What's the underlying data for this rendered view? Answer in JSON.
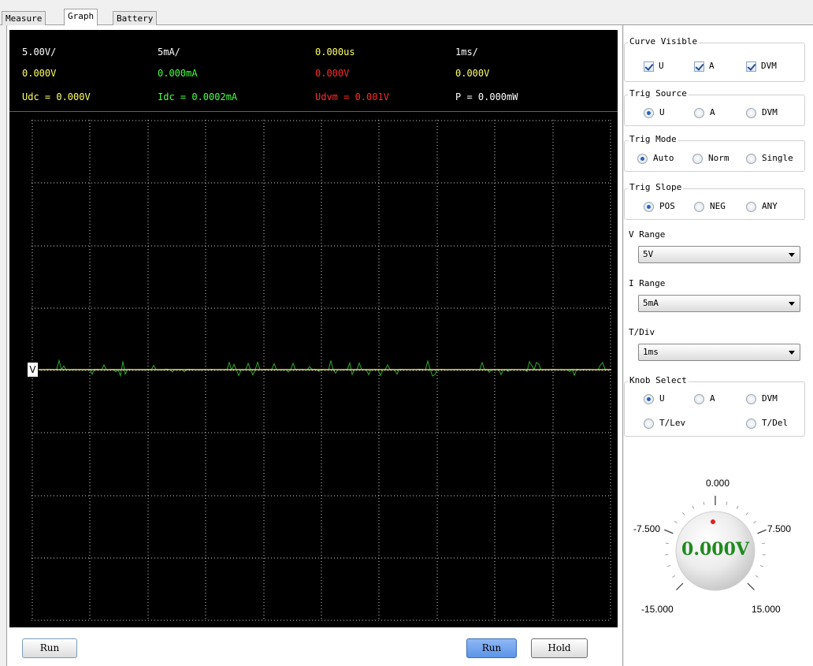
{
  "tabs": [
    {
      "label": "Measure",
      "active": false
    },
    {
      "label": "Graph",
      "active": true
    },
    {
      "label": "Battery",
      "active": false
    }
  ],
  "scope_header": {
    "row1": {
      "v_div": "5.00V/",
      "i_div": "5mA/",
      "delay": "0.000us",
      "t_div": "1ms/"
    },
    "row2": {
      "v_val": "0.000V",
      "i_val": "0.000mA",
      "dvm_val": "0.000V",
      "extra_val": "0.000V"
    },
    "row3": {
      "udc": "Udc = 0.000V",
      "idc": "Idc = 0.0002mA",
      "udvm": "Udvm = 0.001V",
      "power": "P = 0.000mW"
    }
  },
  "channel_marker": "V",
  "buttons": {
    "run_left": "Run",
    "run": "Run",
    "hold": "Hold"
  },
  "curve_visible": {
    "title": "Curve Visible",
    "items": [
      "U",
      "A",
      "DVM"
    ],
    "checked": [
      true,
      true,
      true
    ]
  },
  "trig_source": {
    "title": "Trig Source",
    "items": [
      "U",
      "A",
      "DVM"
    ],
    "selected": "U"
  },
  "trig_mode": {
    "title": "Trig Mode",
    "items": [
      "Auto",
      "Norm",
      "Single"
    ],
    "selected": "Auto"
  },
  "trig_slope": {
    "title": "Trig Slope",
    "items": [
      "POS",
      "NEG",
      "ANY"
    ],
    "selected": "POS"
  },
  "v_range": {
    "title": "V Range",
    "value": "5V"
  },
  "i_range": {
    "title": "I Range",
    "value": "5mA"
  },
  "t_div": {
    "title": "T/Div",
    "value": "1ms"
  },
  "knob_select": {
    "title": "Knob Select",
    "items": [
      "U",
      "A",
      "DVM",
      "T/Lev",
      "T/Del"
    ],
    "selected": "U"
  },
  "knob": {
    "top": "0.000",
    "left": "-7.500",
    "right": "7.500",
    "bottom_left": "-15.000",
    "bottom_right": "15.000",
    "value": "0.000V"
  },
  "colors": {
    "voltage": "#ffff66",
    "current": "#44ff44",
    "dvm": "#ff2a2a",
    "grid": "#cfcfcf",
    "knob_value": "#1f8a1f"
  }
}
